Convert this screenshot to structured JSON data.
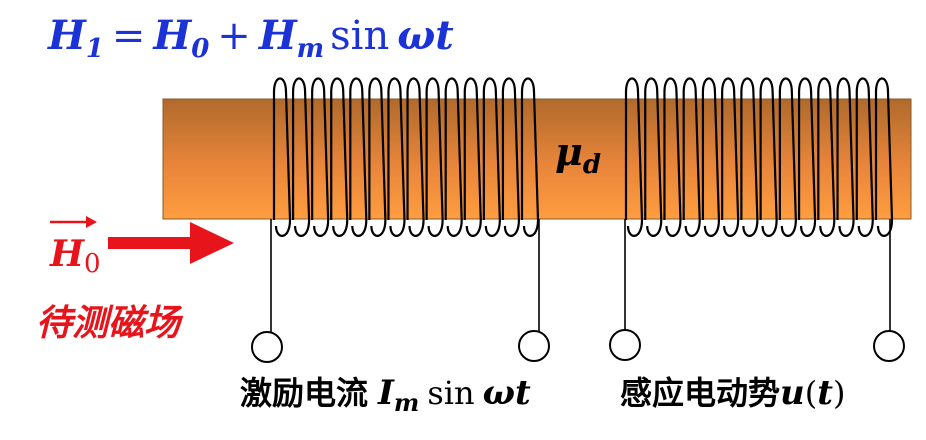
{
  "formula": {
    "H1": "H",
    "H1_sub": "1",
    "equals": "=",
    "H0": "H",
    "H0_sub": "0",
    "plus": "+",
    "Hm": "H",
    "Hm_sub": "m",
    "sin": "sin",
    "wt": "ωt"
  },
  "core": {
    "mu": "μ",
    "mu_sub": "d"
  },
  "external_field": {
    "symbol": "H",
    "sub": "0",
    "caption": "待测磁场"
  },
  "excitation_label": {
    "text": "激励电流",
    "I": "I",
    "I_sub": "m",
    "sin": "sin",
    "wt": "ωt"
  },
  "emf_label": {
    "text": "感应电动势",
    "u": "u",
    "open": "(",
    "t": "t",
    "close": ")"
  },
  "colors": {
    "formula_blue": "#1a32d6",
    "field_red": "#e8141c",
    "core_top": "#b86f30",
    "core_bottom": "#ff9a3c",
    "wire": "#000000"
  }
}
